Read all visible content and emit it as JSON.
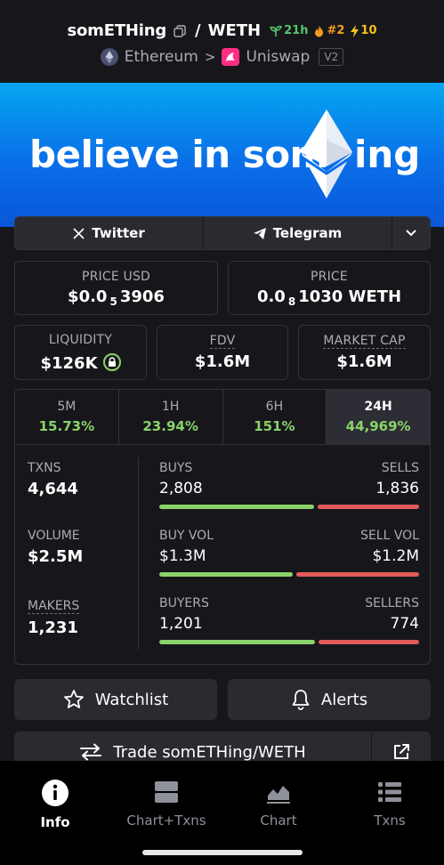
{
  "header": {
    "pair_name": "somETHing",
    "separator": "/",
    "quote_name": "WETH",
    "age": "21h",
    "rank": "#2",
    "boosts": "10",
    "chain": "Ethereum",
    "dex": "Uniswap",
    "dex_version": "V2"
  },
  "banner": {
    "text_left": "believe in som",
    "text_right": "ing"
  },
  "socials": {
    "twitter": "Twitter",
    "telegram": "Telegram"
  },
  "price": {
    "usd_label": "PRICE USD",
    "usd_prefix": "$0.0",
    "usd_sub": "5",
    "usd_digits": "3906",
    "native_label": "PRICE",
    "native_prefix": "0.0",
    "native_sub": "8",
    "native_digits": "1030 WETH"
  },
  "metrics": {
    "liquidity_label": "LIQUIDITY",
    "liquidity_value": "$126K",
    "fdv_label": "FDV",
    "fdv_value": "$1.6M",
    "mcap_label": "MARKET CAP",
    "mcap_value": "$1.6M"
  },
  "timeframes": [
    {
      "label": "5M",
      "value": "15.73%"
    },
    {
      "label": "1H",
      "value": "23.94%"
    },
    {
      "label": "6H",
      "value": "151%"
    },
    {
      "label": "24H",
      "value": "44,969%"
    }
  ],
  "stats": {
    "txns_label": "TXNS",
    "txns_value": "4,644",
    "buys_label": "BUYS",
    "buys_value": "2,808",
    "sells_label": "SELLS",
    "sells_value": "1,836",
    "buys_share": 0.605,
    "volume_label": "VOLUME",
    "volume_value": "$2.5M",
    "buyvol_label": "BUY VOL",
    "buyvol_value": "$1.3M",
    "sellvol_label": "SELL VOL",
    "sellvol_value": "$1.2M",
    "buyvol_share": 0.52,
    "makers_label": "MAKERS",
    "makers_value": "1,231",
    "buyers_label": "BUYERS",
    "buyers_value": "1,201",
    "sellers_label": "SELLERS",
    "sellers_value": "774",
    "buyers_share": 0.608
  },
  "actions": {
    "watchlist": "Watchlist",
    "alerts": "Alerts",
    "trade": "Trade somETHing/WETH"
  },
  "nav": {
    "info": "Info",
    "chart_txns": "Chart+Txns",
    "chart": "Chart",
    "txns": "Txns"
  },
  "colors": {
    "positive": "#8ad36a",
    "negative": "#e35a5a",
    "banner": "#0a6fe8"
  }
}
